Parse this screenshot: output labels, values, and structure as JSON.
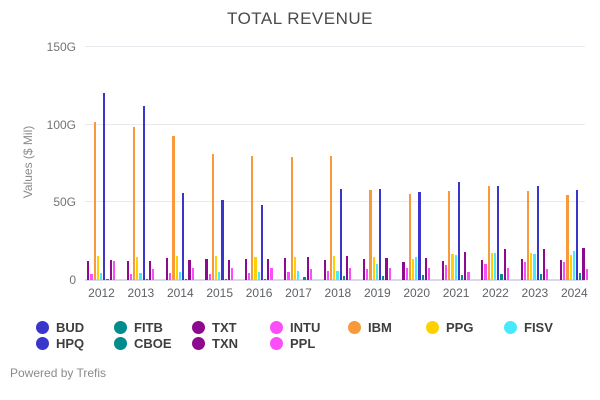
{
  "title": "TOTAL REVENUE",
  "y_axis": {
    "label": "Values ($ Mil)",
    "ticks": [
      {
        "label": "0",
        "value": 0
      },
      {
        "label": "50G",
        "value": 50
      },
      {
        "label": "100G",
        "value": 100
      },
      {
        "label": "150G",
        "value": 150
      }
    ]
  },
  "footer": "Powered by Trefis",
  "chart_data": {
    "type": "bar",
    "title": "TOTAL REVENUE",
    "xlabel": "",
    "ylabel": "Values ($ Mil)",
    "ylim": [
      0,
      154
    ],
    "grid": true,
    "legend_position": "bottom",
    "value_unit": "G (billions of $)",
    "categories": [
      2012,
      2013,
      2014,
      2015,
      2016,
      2017,
      2018,
      2019,
      2020,
      2021,
      2022,
      2023,
      2024
    ],
    "series": [
      {
        "name": "BUD",
        "color": "#3a36cb",
        "values": [
          null,
          null,
          null,
          null,
          null,
          null,
          null,
          null,
          null,
          null,
          null,
          null,
          null
        ]
      },
      {
        "name": "FITB",
        "color": "#028c8c",
        "values": [
          null,
          null,
          null,
          null,
          null,
          null,
          null,
          null,
          null,
          null,
          null,
          null,
          null
        ]
      },
      {
        "name": "TXT",
        "color": "#8d0a8f",
        "values": [
          12.2,
          12.1,
          13.9,
          13.4,
          13.8,
          14.2,
          13.0,
          13.6,
          11.7,
          12.4,
          12.9,
          13.5,
          12.7
        ]
      },
      {
        "name": "INTU",
        "color": "#f94ef9",
        "values": [
          4.2,
          4.2,
          4.5,
          4.2,
          4.7,
          5.2,
          6.0,
          6.8,
          7.7,
          9.6,
          10.5,
          11.5,
          11.3
        ]
      },
      {
        "name": "IBM",
        "color": "#f8993b",
        "values": [
          102.0,
          98.4,
          92.8,
          81.0,
          79.9,
          79.1,
          79.6,
          57.7,
          55.2,
          57.4,
          60.5,
          57.5,
          55.0
        ]
      },
      {
        "name": "PPG",
        "color": "#ffd100",
        "values": [
          15.2,
          15.1,
          15.4,
          15.3,
          14.8,
          14.8,
          15.4,
          15.1,
          13.8,
          16.8,
          17.7,
          17.5,
          16.3
        ]
      },
      {
        "name": "FISV",
        "color": "#45eaff",
        "values": [
          4.5,
          4.8,
          5.1,
          5.3,
          5.5,
          5.7,
          5.8,
          10.5,
          14.9,
          16.2,
          17.7,
          17.0,
          18.5
        ]
      },
      {
        "name": "HPQ",
        "color": "#3a36cb",
        "values": [
          120.4,
          112.3,
          56.0,
          51.5,
          48.2,
          null,
          58.5,
          58.8,
          56.6,
          63.1,
          60.8,
          60.5,
          58.0
        ]
      },
      {
        "name": "CBOE",
        "color": "#028c8c",
        "values": [
          0.5,
          0.6,
          0.6,
          0.6,
          0.7,
          2.0,
          2.5,
          2.5,
          3.4,
          3.5,
          4.0,
          3.8,
          4.3
        ]
      },
      {
        "name": "TXN",
        "color": "#8d0a8f",
        "values": [
          12.8,
          12.2,
          13.0,
          13.0,
          13.4,
          14.8,
          15.8,
          14.4,
          14.5,
          18.3,
          20.0,
          20.1,
          20.5
        ]
      },
      {
        "name": "PPL",
        "color": "#f94ef9",
        "values": [
          12.3,
          7.0,
          7.5,
          7.5,
          7.5,
          7.3,
          8.0,
          7.8,
          7.6,
          5.5,
          7.9,
          7.1,
          7.3
        ]
      }
    ],
    "legend_rows": [
      [
        "BUD",
        "FITB",
        "TXT",
        "INTU",
        "IBM",
        "PPG",
        "FISV"
      ],
      [
        "HPQ",
        "CBOE",
        "TXN",
        "PPL"
      ]
    ]
  }
}
